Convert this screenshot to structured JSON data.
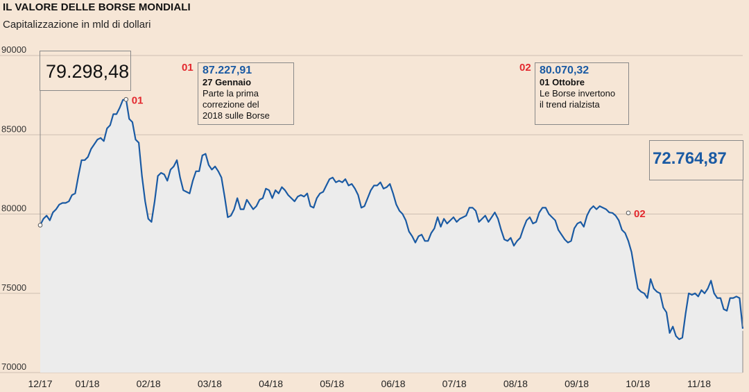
{
  "title": "IL VALORE DELLE BORSE MONDIALI",
  "subtitle": "Capitalizzazione in mld di dollari",
  "start_value": "79.298,48",
  "end_value": "72.764,87",
  "annotations": [
    {
      "num": "01",
      "value": "87.227,91",
      "date": "27 Gennaio",
      "text": [
        "Parte la prima",
        "correzione del",
        "2018 sulle Borse"
      ]
    },
    {
      "num": "02",
      "value": "80.070,32",
      "date": "01 Ottobre",
      "text": [
        "Le Borse invertono",
        "il trend rialzista"
      ]
    }
  ],
  "colors": {
    "line": "#1a5aa3",
    "fill": "#ececec",
    "accent": "#e3282e",
    "background": "#f6e6d6"
  },
  "chart_data": {
    "type": "area",
    "title": "IL VALORE DELLE BORSE MONDIALI",
    "subtitle": "Capitalizzazione in mld di dollari",
    "x_ticks": [
      "12/17",
      "01/18",
      "02/18",
      "03/18",
      "04/18",
      "05/18",
      "06/18",
      "07/18",
      "08/18",
      "09/18",
      "10/18",
      "11/18"
    ],
    "y_ticks": [
      70000,
      75000,
      80000,
      85000,
      90000
    ],
    "y_tick_labels": [
      "70000",
      "75000",
      "80000",
      "85000",
      "90000"
    ],
    "ylim": [
      70000,
      90000
    ],
    "grid": "horizontal",
    "series": [
      {
        "values": [
          79300,
          79700,
          79900,
          79600,
          80100,
          80300,
          80600,
          80700,
          80700,
          80800,
          81200,
          81300,
          82400,
          83400,
          83400,
          83600,
          84100,
          84400,
          84700,
          84800,
          84600,
          85400,
          85600,
          86300,
          86300,
          86700,
          87200,
          87228,
          86000,
          85800,
          84700,
          84500,
          82400,
          80800,
          79700,
          79500,
          80800,
          82400,
          82600,
          82500,
          82100,
          82800,
          83000,
          83400,
          82300,
          81500,
          81400,
          81300,
          82100,
          82700,
          82700,
          83700,
          83800,
          83100,
          82800,
          83000,
          82700,
          82300,
          81100,
          79800,
          79900,
          80300,
          81000,
          80300,
          80300,
          80900,
          80600,
          80300,
          80500,
          80900,
          81000,
          81600,
          81500,
          81000,
          81500,
          81300,
          81700,
          81500,
          81200,
          81000,
          80800,
          81100,
          81200,
          81100,
          81300,
          80500,
          80400,
          81000,
          81300,
          81400,
          81800,
          82200,
          82300,
          82000,
          82100,
          82000,
          82200,
          81800,
          81900,
          81600,
          81200,
          80400,
          80500,
          81000,
          81500,
          81800,
          81800,
          82000,
          81600,
          81700,
          81900,
          81300,
          80600,
          80200,
          80000,
          79600,
          78900,
          78600,
          78200,
          78600,
          78700,
          78300,
          78300,
          78800,
          79100,
          79800,
          79200,
          79700,
          79400,
          79600,
          79800,
          79500,
          79700,
          79800,
          79900,
          80400,
          80400,
          80200,
          79500,
          79700,
          79900,
          79500,
          79800,
          80100,
          79700,
          79000,
          78400,
          78300,
          78500,
          78000,
          78300,
          78500,
          79100,
          79600,
          79800,
          79400,
          79500,
          80100,
          80400,
          80400,
          80000,
          79800,
          79600,
          79000,
          78700,
          78400,
          78200,
          78300,
          79100,
          79400,
          79500,
          79200,
          79900,
          80300,
          80500,
          80300,
          80500,
          80400,
          80300,
          80100,
          80070,
          79900,
          79600,
          79000,
          78800,
          78300,
          77600,
          76400,
          75300,
          75100,
          75000,
          74700,
          75900,
          75300,
          75100,
          75000,
          74100,
          73800,
          72500,
          72900,
          72300,
          72100,
          72200,
          73700,
          75000,
          74900,
          75000,
          74800,
          75200,
          75000,
          75300,
          75800,
          75000,
          74700,
          74700,
          74000,
          73900,
          74700,
          74700,
          74800,
          74700,
          72765
        ]
      }
    ],
    "markers": [
      {
        "index": 0,
        "value": 79298.48
      },
      {
        "index": 27,
        "value": 87227.91,
        "label": "01"
      },
      {
        "index": 185,
        "value": 80070.32,
        "label": "02"
      },
      {
        "index": 232,
        "value": 72764.87
      }
    ]
  }
}
